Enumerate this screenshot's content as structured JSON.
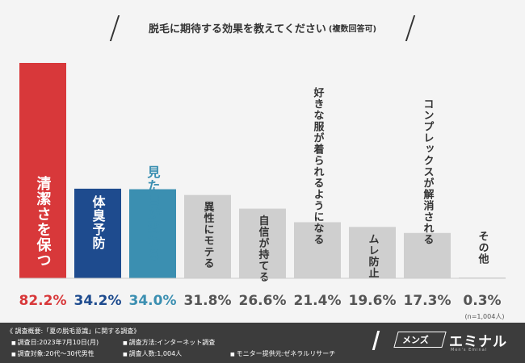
{
  "title": {
    "main": "脱毛に期待する効果を教えてください",
    "sub": "(複数回答可)"
  },
  "chart_data": {
    "type": "bar",
    "title": "脱毛に期待する効果を教えてください(複数回答可)",
    "categories": [
      "清潔さを保つ",
      "体臭予防",
      "見た目が変わる",
      "異性にモテる",
      "自信が持てる",
      "好きな服が着られるようになる",
      "ムレ防止",
      "コンプレックスが解消される",
      "その他"
    ],
    "values": [
      82.2,
      34.2,
      34.0,
      31.8,
      26.6,
      21.4,
      19.6,
      17.3,
      0.3
    ],
    "value_labels": [
      "82.2%",
      "34.2%",
      "34.0%",
      "31.8%",
      "26.6%",
      "21.4%",
      "19.6%",
      "17.3%",
      "0.3%"
    ],
    "unit": "%",
    "ylim": [
      0,
      82.2
    ],
    "colors": [
      "#d8383a",
      "#1e4b8e",
      "#3b8fb1",
      "#cfcfcf",
      "#cfcfcf",
      "#cfcfcf",
      "#cfcfcf",
      "#cfcfcf",
      "#cfcfcf"
    ],
    "value_colors": [
      "#d8383a",
      "#1e4b8e",
      "#3b8fb1",
      "#555555",
      "#555555",
      "#555555",
      "#555555",
      "#555555",
      "#555555"
    ],
    "label_colors": [
      "#ffffff",
      "#ffffff",
      "#3b8fb1",
      "#333333",
      "#333333",
      "#333333",
      "#333333",
      "#333333",
      "#333333"
    ],
    "sample_note": "(n=1,004人)"
  },
  "footer": {
    "heading": "《 調査概要:「夏の脱毛意識」に関する調査》",
    "items": [
      "調査日:2023年7月10日(月)",
      "調査方法:インターネット調査",
      "調査対象:20代〜30代男性",
      "調査人数:1,004人",
      "モニター提供元:ゼネラルリサーチ"
    ]
  },
  "logo": {
    "mens": "メンズ",
    "eminal": "エミナル",
    "sub": "Men's Eminal"
  }
}
